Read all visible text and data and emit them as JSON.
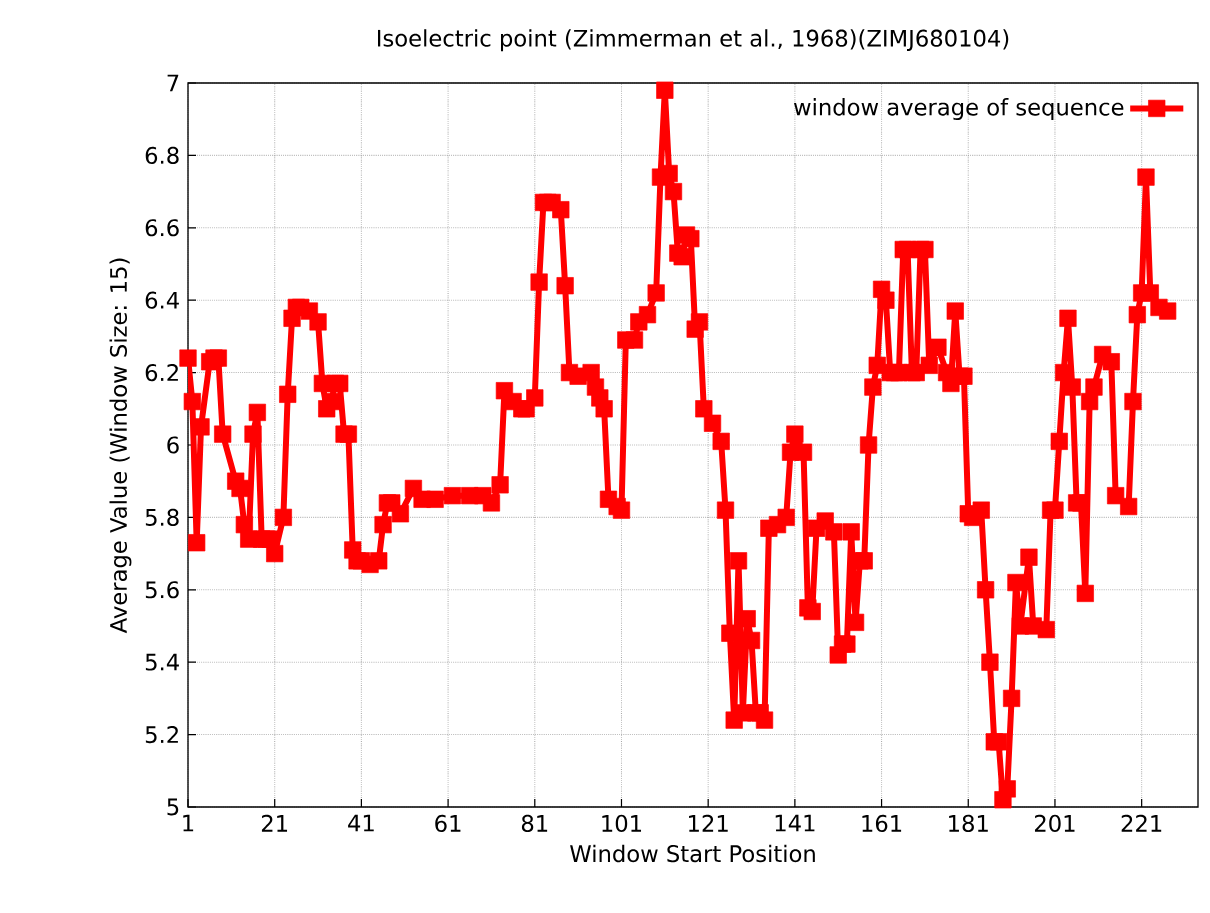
{
  "chart_data": {
    "type": "line",
    "title": "Isoelectric point (Zimmerman et al., 1968)(ZIMJ680104)",
    "xlabel": "Window Start Position",
    "ylabel": "Average Value (Window Size: 15)",
    "xlim": [
      1,
      234
    ],
    "ylim": [
      5,
      7
    ],
    "xticks": [
      1,
      21,
      41,
      61,
      81,
      101,
      121,
      141,
      161,
      181,
      201,
      221
    ],
    "yticks": [
      5,
      5.2,
      5.4,
      5.6,
      5.8,
      6,
      6.2,
      6.4,
      6.6,
      6.8,
      7
    ],
    "grid": true,
    "legend": "top right",
    "marker": "square",
    "series": [
      {
        "name": "window average of sequence",
        "color": "#ff0000",
        "x": [
          1,
          2,
          3,
          4,
          6,
          7,
          8,
          9,
          12,
          13,
          14,
          15,
          16,
          17,
          18,
          19,
          20,
          21,
          23,
          24,
          25,
          26,
          27,
          29,
          31,
          32,
          33,
          34,
          35,
          36,
          37,
          38,
          39,
          40,
          41,
          43,
          45,
          46,
          47,
          48,
          50,
          53,
          55,
          58,
          62,
          66,
          69,
          71,
          73,
          74,
          76,
          78,
          79,
          81,
          82,
          83,
          84,
          85,
          87,
          88,
          89,
          91,
          94,
          95,
          96,
          97,
          98,
          100,
          101,
          102,
          104,
          105,
          107,
          109,
          110,
          111,
          112,
          113,
          114,
          115,
          116,
          117,
          118,
          119,
          120,
          122,
          124,
          125,
          126,
          127,
          128,
          129,
          130,
          131,
          132,
          133,
          134,
          135,
          137,
          139,
          140,
          141,
          143,
          144,
          145,
          146,
          148,
          150,
          151,
          152,
          153,
          154,
          155,
          156,
          157,
          158,
          159,
          160,
          161,
          162,
          163,
          164,
          165,
          166,
          167,
          168,
          169,
          170,
          171,
          172,
          174,
          176,
          177,
          178,
          179,
          180,
          181,
          182,
          184,
          185,
          186,
          187,
          188,
          189,
          190,
          191,
          192,
          193,
          195,
          196,
          199,
          200,
          201,
          202,
          203,
          204,
          205,
          206,
          207,
          208,
          209,
          210,
          212,
          214,
          215,
          218,
          219,
          220,
          221,
          222,
          223,
          225,
          227
        ],
        "values": [
          6.24,
          6.12,
          5.73,
          6.05,
          6.23,
          6.24,
          6.24,
          6.03,
          5.9,
          5.88,
          5.78,
          5.74,
          6.03,
          6.09,
          5.74,
          5.74,
          5.74,
          5.7,
          5.8,
          6.14,
          6.35,
          6.38,
          6.38,
          6.37,
          6.34,
          6.17,
          6.1,
          6.12,
          6.17,
          6.17,
          6.03,
          6.03,
          5.71,
          5.68,
          5.68,
          5.67,
          5.68,
          5.78,
          5.84,
          5.84,
          5.81,
          5.88,
          5.85,
          5.85,
          5.86,
          5.86,
          5.86,
          5.84,
          5.89,
          6.15,
          6.12,
          6.1,
          6.1,
          6.13,
          6.45,
          6.67,
          6.67,
          6.67,
          6.65,
          6.44,
          6.2,
          6.19,
          6.2,
          6.16,
          6.13,
          6.1,
          5.85,
          5.83,
          5.82,
          6.29,
          6.29,
          6.34,
          6.36,
          6.42,
          6.74,
          6.98,
          6.75,
          6.7,
          6.53,
          6.52,
          6.58,
          6.57,
          6.32,
          6.34,
          6.1,
          6.06,
          6.01,
          5.82,
          5.48,
          5.24,
          5.68,
          5.26,
          5.52,
          5.46,
          5.26,
          5.26,
          5.24,
          5.77,
          5.78,
          5.8,
          5.98,
          6.03,
          5.98,
          5.55,
          5.54,
          5.77,
          5.79,
          5.76,
          5.42,
          5.45,
          5.45,
          5.76,
          5.51,
          5.68,
          5.68,
          6.0,
          6.16,
          6.22,
          6.43,
          6.4,
          6.2,
          6.2,
          6.2,
          6.54,
          6.54,
          6.2,
          6.2,
          6.54,
          6.54,
          6.22,
          6.27,
          6.2,
          6.17,
          6.37,
          6.19,
          6.19,
          5.81,
          5.8,
          5.82,
          5.6,
          5.4,
          5.18,
          5.18,
          5.02,
          5.05,
          5.3,
          5.62,
          5.5,
          5.69,
          5.5,
          5.49,
          5.82,
          5.82,
          6.01,
          6.2,
          6.35,
          6.16,
          5.84,
          5.84,
          5.59,
          6.12,
          6.16,
          6.25,
          6.23,
          5.86,
          5.83,
          6.12,
          6.36,
          6.42,
          6.74,
          6.42,
          6.38,
          6.37
        ]
      }
    ]
  }
}
